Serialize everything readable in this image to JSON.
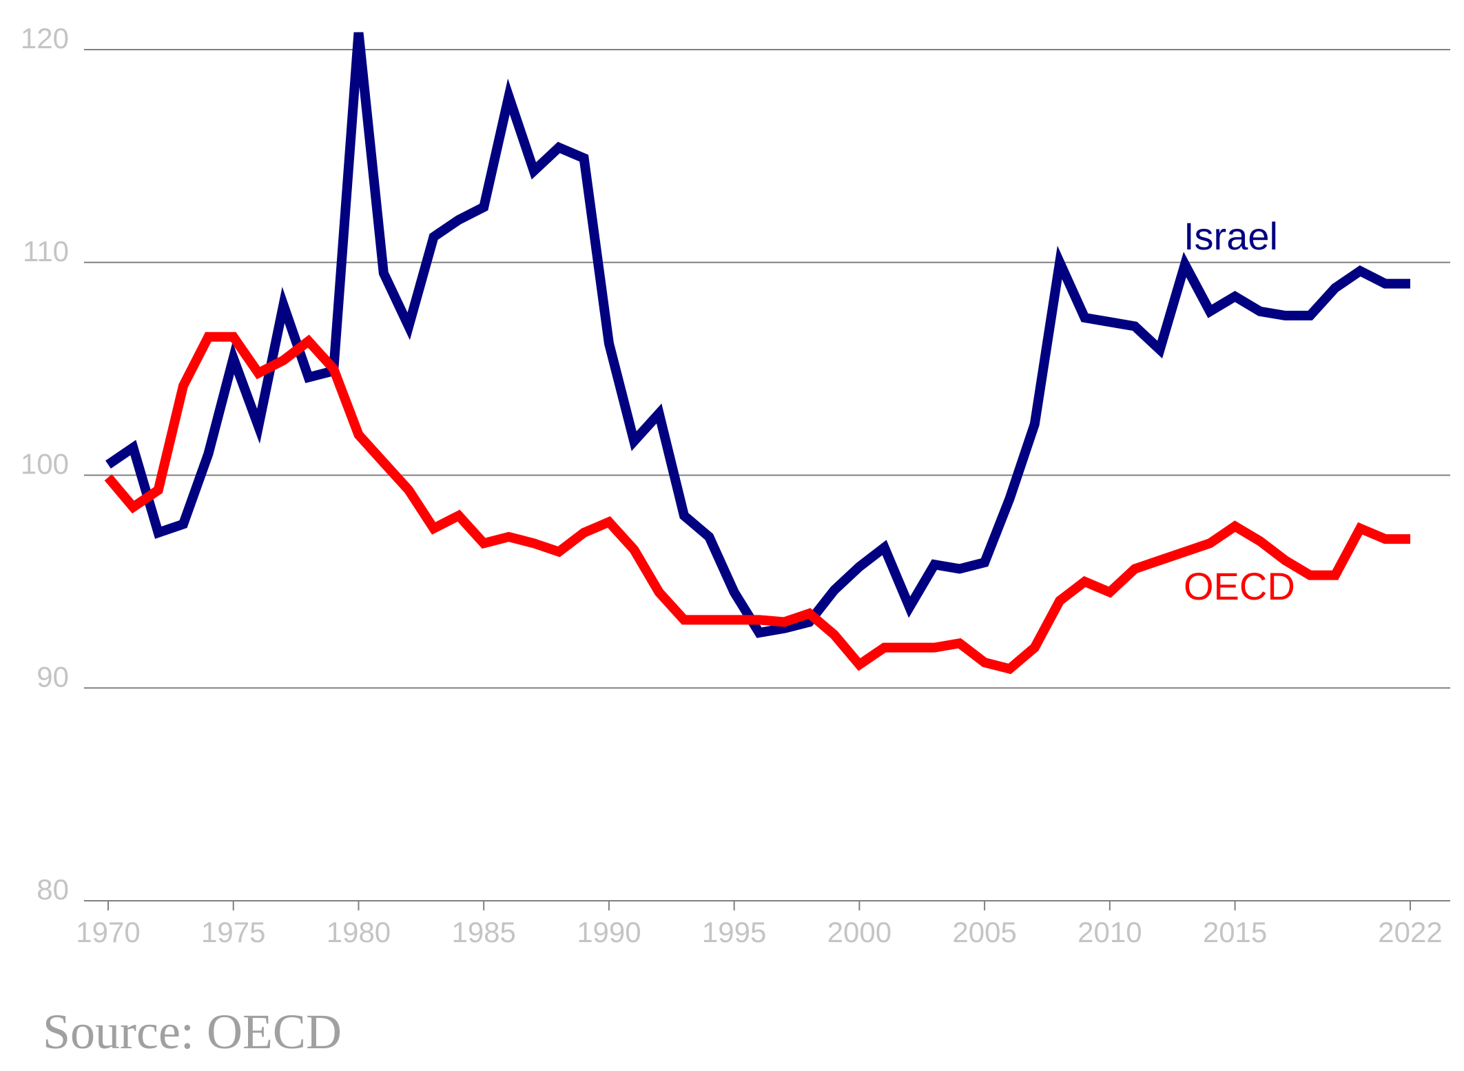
{
  "chart_data": {
    "type": "line",
    "title": "",
    "xlabel": "",
    "ylabel": "",
    "ylim": [
      80,
      121
    ],
    "xlim": [
      1970,
      2022
    ],
    "y_ticks": [
      "80",
      "90",
      "100",
      "110",
      "120"
    ],
    "x_ticks": [
      "1970",
      "1975",
      "1980",
      "1985",
      "1990",
      "1995",
      "2000",
      "2005",
      "2010",
      "2015",
      "2022"
    ],
    "grid": true,
    "series": [
      {
        "name": "Israel",
        "label": "Israel",
        "color": "#000080",
        "x": [
          1970,
          1971,
          1972,
          1973,
          1974,
          1975,
          1976,
          1977,
          1978,
          1979,
          1980,
          1981,
          1982,
          1983,
          1984,
          1985,
          1986,
          1987,
          1988,
          1989,
          1990,
          1991,
          1992,
          1993,
          1994,
          1995,
          1996,
          1997,
          1998,
          1999,
          2000,
          2001,
          2002,
          2003,
          2004,
          2005,
          2006,
          2007,
          2008,
          2009,
          2010,
          2011,
          2012,
          2013,
          2014,
          2015,
          2016,
          2017,
          2018,
          2019,
          2020,
          2021,
          2022
        ],
        "values": [
          100.5,
          101.3,
          97.3,
          97.7,
          101.0,
          105.5,
          102.3,
          108.0,
          104.6,
          104.9,
          120.8,
          109.5,
          107.0,
          111.2,
          112.0,
          112.6,
          117.8,
          114.3,
          115.4,
          114.9,
          106.2,
          101.6,
          102.9,
          98.1,
          97.1,
          94.5,
          92.6,
          92.8,
          93.1,
          94.6,
          95.7,
          96.6,
          93.8,
          95.8,
          95.6,
          95.9,
          98.9,
          102.4,
          110.0,
          107.4,
          107.2,
          107.0,
          105.9,
          109.9,
          107.7,
          108.4,
          107.7,
          107.5,
          107.5,
          108.8,
          109.6,
          109.0,
          109.0
        ],
        "line_width": 14
      },
      {
        "name": "OECD",
        "label": "OECD",
        "color": "#ff0000",
        "x": [
          1970,
          1971,
          1972,
          1973,
          1974,
          1975,
          1976,
          1977,
          1978,
          1979,
          1980,
          1981,
          1982,
          1983,
          1984,
          1985,
          1986,
          1987,
          1988,
          1989,
          1990,
          1991,
          1992,
          1993,
          1994,
          1995,
          1996,
          1997,
          1998,
          1999,
          2000,
          2001,
          2002,
          2003,
          2004,
          2005,
          2006,
          2007,
          2008,
          2009,
          2010,
          2011,
          2012,
          2013,
          2014,
          2015,
          2016,
          2017,
          2018,
          2019,
          2020,
          2021,
          2022
        ],
        "values": [
          99.9,
          98.5,
          99.3,
          104.2,
          106.5,
          106.5,
          104.8,
          105.4,
          106.3,
          105.0,
          101.9,
          100.6,
          99.3,
          97.5,
          98.1,
          96.8,
          97.1,
          96.8,
          96.4,
          97.3,
          97.8,
          96.5,
          94.5,
          93.2,
          93.2,
          93.2,
          93.2,
          93.1,
          93.5,
          92.5,
          91.1,
          91.9,
          91.9,
          91.9,
          92.1,
          91.2,
          90.9,
          91.9,
          94.1,
          95.0,
          94.5,
          95.6,
          96.0,
          96.4,
          96.8,
          97.6,
          96.9,
          96.0,
          95.3,
          95.3,
          97.5,
          97.0,
          97.0
        ],
        "line_width": 14
      }
    ],
    "annotations": [
      "Israel",
      "OECD"
    ],
    "source": "Source: OECD"
  }
}
